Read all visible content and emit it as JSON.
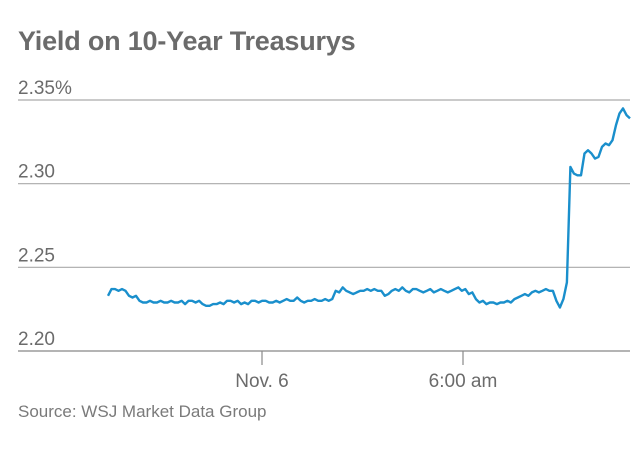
{
  "chart_data": {
    "type": "line",
    "title": "Yield on 10-Year Treasurys",
    "xlabel": "",
    "ylabel": "",
    "x_tick_labels": [
      "Nov. 6",
      "6:00 am"
    ],
    "y_tick_labels": [
      "2.35%",
      "2.30",
      "2.25",
      "2.20"
    ],
    "y_ticks": [
      2.35,
      2.3,
      2.25,
      2.2
    ],
    "ylim": [
      2.2,
      2.35
    ],
    "grid": true,
    "colors": {
      "line": "#1a8fcc",
      "grid": "#aaaaaa",
      "text": "#6b6b6b"
    },
    "series": [
      {
        "values": [
          2.233,
          2.237,
          2.237,
          2.236,
          2.237,
          2.236,
          2.233,
          2.232,
          2.233,
          2.23,
          2.229,
          2.229,
          2.23,
          2.229,
          2.229,
          2.23,
          2.229,
          2.229,
          2.23,
          2.229,
          2.229,
          2.23,
          2.228,
          2.23,
          2.23,
          2.229,
          2.23,
          2.228,
          2.227,
          2.227,
          2.228,
          2.228,
          2.229,
          2.228,
          2.23,
          2.23,
          2.229,
          2.23,
          2.228,
          2.229,
          2.228,
          2.23,
          2.23,
          2.229,
          2.23,
          2.23,
          2.229,
          2.229,
          2.23,
          2.229,
          2.23,
          2.231,
          2.23,
          2.23,
          2.232,
          2.23,
          2.229,
          2.23,
          2.23,
          2.231,
          2.23,
          2.23,
          2.231,
          2.23,
          2.231,
          2.236,
          2.235,
          2.238,
          2.236,
          2.235,
          2.234,
          2.235,
          2.236,
          2.236,
          2.237,
          2.236,
          2.237,
          2.236,
          2.236,
          2.233,
          2.234,
          2.236,
          2.237,
          2.236,
          2.238,
          2.236,
          2.235,
          2.237,
          2.237,
          2.236,
          2.235,
          2.236,
          2.237,
          2.235,
          2.236,
          2.237,
          2.236,
          2.235,
          2.236,
          2.237,
          2.238,
          2.236,
          2.237,
          2.234,
          2.235,
          2.231,
          2.229,
          2.23,
          2.228,
          2.229,
          2.229,
          2.228,
          2.229,
          2.229,
          2.23,
          2.229,
          2.231,
          2.232,
          2.233,
          2.234,
          2.233,
          2.235,
          2.236,
          2.235,
          2.236,
          2.237,
          2.236,
          2.236,
          2.23,
          2.226,
          2.231,
          2.241,
          2.31,
          2.306,
          2.305,
          2.305,
          2.318,
          2.32,
          2.318,
          2.315,
          2.316,
          2.322,
          2.324,
          2.323,
          2.326,
          2.335,
          2.342,
          2.345,
          2.341,
          2.339
        ]
      }
    ]
  },
  "source": "Source: WSJ Market Data Group"
}
